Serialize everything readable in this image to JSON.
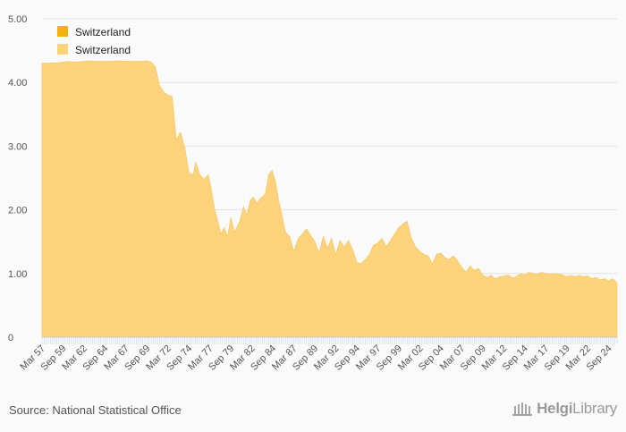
{
  "chart_data": {
    "type": "area",
    "title": "",
    "xlabel": "",
    "ylabel": "",
    "ylim": [
      0,
      5
    ],
    "yticks": [
      {
        "value": 0,
        "label": "0"
      },
      {
        "value": 1,
        "label": "1.00"
      },
      {
        "value": 2,
        "label": "2.00"
      },
      {
        "value": 3,
        "label": "3.00"
      },
      {
        "value": 4,
        "label": "4.00"
      },
      {
        "value": 5,
        "label": "5.00"
      }
    ],
    "x_start_year": 1957,
    "x_end_year": 2025.5,
    "xtick_labels": [
      "Mar 57",
      "Sep 59",
      "Mar 62",
      "Sep 64",
      "Mar 67",
      "Sep 69",
      "Mar 72",
      "Sep 74",
      "Mar 77",
      "Sep 79",
      "Mar 82",
      "Sep 84",
      "Mar 87",
      "Sep 89",
      "Mar 92",
      "Sep 94",
      "Mar 97",
      "Sep 99",
      "Mar 02",
      "Sep 04",
      "Mar 07",
      "Sep 09",
      "Mar 12",
      "Sep 14",
      "Mar 17",
      "Sep 19",
      "Mar 22",
      "Sep 24"
    ],
    "legend": [
      {
        "label": "Switzerland",
        "color": "#f5b10f"
      },
      {
        "label": "Switzerland",
        "color": "#fcd27a"
      }
    ],
    "series": [
      {
        "name": "Switzerland",
        "color": "#fcd27a",
        "points": [
          [
            1957.0,
            4.3
          ],
          [
            1959.0,
            4.31
          ],
          [
            1960.0,
            4.33
          ],
          [
            1961.0,
            4.32
          ],
          [
            1962.5,
            4.34
          ],
          [
            1964.0,
            4.33
          ],
          [
            1966.0,
            4.34
          ],
          [
            1968.0,
            4.33
          ],
          [
            1969.5,
            4.34
          ],
          [
            1970.0,
            4.32
          ],
          [
            1970.5,
            4.25
          ],
          [
            1971.0,
            3.95
          ],
          [
            1971.5,
            3.85
          ],
          [
            1972.0,
            3.8
          ],
          [
            1972.5,
            3.78
          ],
          [
            1973.0,
            3.1
          ],
          [
            1973.5,
            3.22
          ],
          [
            1974.0,
            2.98
          ],
          [
            1974.5,
            2.58
          ],
          [
            1975.0,
            2.55
          ],
          [
            1975.3,
            2.75
          ],
          [
            1975.8,
            2.55
          ],
          [
            1976.3,
            2.48
          ],
          [
            1976.8,
            2.55
          ],
          [
            1977.2,
            2.3
          ],
          [
            1977.6,
            1.98
          ],
          [
            1978.0,
            1.8
          ],
          [
            1978.3,
            1.62
          ],
          [
            1978.7,
            1.72
          ],
          [
            1979.1,
            1.58
          ],
          [
            1979.5,
            1.88
          ],
          [
            1979.9,
            1.65
          ],
          [
            1980.5,
            1.8
          ],
          [
            1981.0,
            2.05
          ],
          [
            1981.4,
            1.92
          ],
          [
            1981.8,
            2.15
          ],
          [
            1982.2,
            2.2
          ],
          [
            1982.6,
            2.1
          ],
          [
            1983.0,
            2.18
          ],
          [
            1983.6,
            2.25
          ],
          [
            1984.0,
            2.55
          ],
          [
            1984.4,
            2.62
          ],
          [
            1984.8,
            2.45
          ],
          [
            1985.2,
            2.15
          ],
          [
            1985.6,
            1.9
          ],
          [
            1986.0,
            1.65
          ],
          [
            1986.5,
            1.58
          ],
          [
            1987.0,
            1.35
          ],
          [
            1987.5,
            1.55
          ],
          [
            1988.0,
            1.62
          ],
          [
            1988.5,
            1.7
          ],
          [
            1989.0,
            1.6
          ],
          [
            1989.5,
            1.5
          ],
          [
            1990.0,
            1.32
          ],
          [
            1990.5,
            1.58
          ],
          [
            1991.0,
            1.4
          ],
          [
            1991.5,
            1.55
          ],
          [
            1992.0,
            1.3
          ],
          [
            1992.5,
            1.52
          ],
          [
            1993.0,
            1.42
          ],
          [
            1993.5,
            1.52
          ],
          [
            1994.0,
            1.38
          ],
          [
            1994.5,
            1.18
          ],
          [
            1995.0,
            1.15
          ],
          [
            1995.5,
            1.22
          ],
          [
            1996.0,
            1.3
          ],
          [
            1996.5,
            1.45
          ],
          [
            1997.0,
            1.48
          ],
          [
            1997.5,
            1.55
          ],
          [
            1998.0,
            1.42
          ],
          [
            1998.5,
            1.52
          ],
          [
            1999.0,
            1.62
          ],
          [
            1999.5,
            1.72
          ],
          [
            2000.0,
            1.78
          ],
          [
            2000.5,
            1.82
          ],
          [
            2001.0,
            1.55
          ],
          [
            2001.5,
            1.42
          ],
          [
            2002.0,
            1.35
          ],
          [
            2002.5,
            1.3
          ],
          [
            2003.0,
            1.28
          ],
          [
            2003.5,
            1.15
          ],
          [
            2004.0,
            1.3
          ],
          [
            2004.5,
            1.32
          ],
          [
            2005.0,
            1.25
          ],
          [
            2005.5,
            1.22
          ],
          [
            2006.0,
            1.28
          ],
          [
            2006.5,
            1.2
          ],
          [
            2007.0,
            1.1
          ],
          [
            2007.5,
            1.02
          ],
          [
            2008.0,
            1.12
          ],
          [
            2008.5,
            1.05
          ],
          [
            2009.0,
            1.08
          ],
          [
            2009.5,
            0.98
          ],
          [
            2010.0,
            0.94
          ],
          [
            2010.5,
            0.97
          ],
          [
            2011.0,
            0.92
          ],
          [
            2011.5,
            0.95
          ],
          [
            2012.0,
            0.96
          ],
          [
            2012.5,
            0.98
          ],
          [
            2013.0,
            0.93
          ],
          [
            2013.5,
            0.95
          ],
          [
            2014.0,
            1.0
          ],
          [
            2014.5,
            0.98
          ],
          [
            2015.0,
            1.02
          ],
          [
            2015.5,
            1.0
          ],
          [
            2016.0,
            0.99
          ],
          [
            2016.5,
            1.02
          ],
          [
            2017.0,
            1.0
          ],
          [
            2017.5,
            0.99
          ],
          [
            2018.0,
            1.0
          ],
          [
            2018.5,
            0.99
          ],
          [
            2019.0,
            0.98
          ],
          [
            2019.5,
            0.95
          ],
          [
            2020.0,
            0.97
          ],
          [
            2020.5,
            0.95
          ],
          [
            2021.0,
            0.97
          ],
          [
            2021.5,
            0.95
          ],
          [
            2022.0,
            0.96
          ],
          [
            2022.5,
            0.92
          ],
          [
            2023.0,
            0.94
          ],
          [
            2023.5,
            0.9
          ],
          [
            2024.0,
            0.92
          ],
          [
            2024.5,
            0.88
          ],
          [
            2025.0,
            0.92
          ],
          [
            2025.5,
            0.85
          ]
        ]
      }
    ]
  },
  "footer": {
    "source": "Source: National Statistical Office",
    "logo_brand": "Helgi",
    "logo_suffix": "Library"
  }
}
